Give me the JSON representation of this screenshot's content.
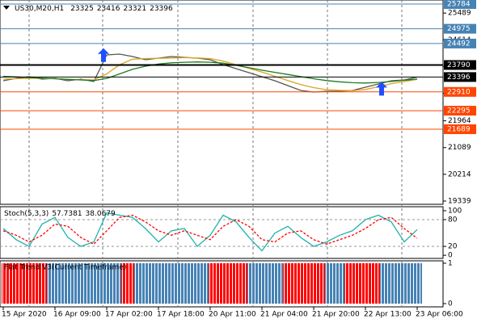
{
  "chart_data": [
    {
      "type": "line",
      "title": "US30,M20,H1",
      "ohlc": [
        23325,
        23416,
        23321,
        23396
      ],
      "x": [
        0,
        4,
        8,
        12,
        16,
        20,
        24,
        28,
        32,
        36,
        40,
        44,
        48,
        52,
        56,
        60,
        64,
        68,
        72,
        76,
        80,
        84,
        88,
        92,
        96,
        100,
        104,
        108,
        112,
        116,
        120,
        124,
        128
      ],
      "series": [
        {
          "name": "close",
          "color": "#555555",
          "values": [
            23275,
            23354,
            23407,
            23328,
            23354,
            23275,
            23328,
            23250,
            24120,
            24147,
            24067,
            23962,
            24015,
            24067,
            24041,
            24015,
            23962,
            23803,
            23671,
            23539,
            23407,
            23275,
            23117,
            22958,
            22905,
            22932,
            22932,
            22958,
            23064,
            23170,
            23275,
            23301,
            23396
          ]
        },
        {
          "name": "fast",
          "color": "#daa520",
          "values": [
            23330,
            23340,
            23360,
            23350,
            23340,
            23320,
            23310,
            23300,
            23500,
            23800,
            23980,
            24000,
            24010,
            24020,
            24030,
            24020,
            24000,
            23920,
            23800,
            23680,
            23560,
            23420,
            23280,
            23150,
            23050,
            22980,
            22960,
            22950,
            22990,
            23080,
            23180,
            23250,
            23320
          ]
        },
        {
          "name": "slow",
          "color": "#1e7b1e",
          "values": [
            23420,
            23400,
            23380,
            23360,
            23340,
            23320,
            23300,
            23280,
            23350,
            23500,
            23650,
            23750,
            23820,
            23860,
            23880,
            23890,
            23880,
            23850,
            23780,
            23700,
            23620,
            23550,
            23480,
            23410,
            23340,
            23280,
            23240,
            23210,
            23200,
            23220,
            23250,
            23290,
            23330
          ]
        }
      ],
      "xlim": [
        -1,
        136
      ],
      "ylim": [
        19233,
        25916
      ],
      "xticks": [
        {
          "value": 0,
          "label": "15 Apr 2020"
        },
        {
          "value": 16,
          "label": "16 Apr 09:00"
        },
        {
          "value": 32,
          "label": "17 Apr 02:00"
        },
        {
          "value": 48,
          "label": "17 Apr 18:00"
        },
        {
          "value": 64,
          "label": "20 Apr 11:00"
        },
        {
          "value": 80,
          "label": "21 Apr 04:00"
        },
        {
          "value": 96,
          "label": "21 Apr 20:00"
        },
        {
          "value": 112,
          "label": "22 Apr 13:00"
        },
        {
          "value": 128,
          "label": "23 Apr 06:00"
        }
      ],
      "yticks": [
        25489,
        24614,
        23739,
        22864,
        21964,
        21089,
        20214,
        19339
      ],
      "levels": [
        {
          "value": 25784,
          "color": "#4682b4"
        },
        {
          "value": 24975,
          "color": "#4682b4"
        },
        {
          "value": 24492,
          "color": "#4682b4"
        },
        {
          "value": 23790,
          "color": "#000000"
        },
        {
          "value": 23396,
          "color": "#000000"
        },
        {
          "value": 22910,
          "color": "#ff4500"
        },
        {
          "value": 22295,
          "color": "#ff4500"
        },
        {
          "value": 21689,
          "color": "#ff4500"
        }
      ],
      "signals": [
        {
          "x": 31,
          "value": 24100
        },
        {
          "x": 117,
          "value": 23000
        }
      ],
      "signal_color": "#1e50ff"
    },
    {
      "type": "line",
      "title": "Stoch(5,3,3)",
      "x": [
        0,
        4,
        8,
        12,
        16,
        20,
        24,
        28,
        32,
        36,
        40,
        44,
        48,
        52,
        56,
        60,
        64,
        68,
        72,
        76,
        80,
        84,
        88,
        92,
        96,
        100,
        104,
        108,
        112,
        116,
        120,
        124,
        128
      ],
      "series": [
        {
          "name": "main",
          "color": "#20b2aa",
          "values": [
            60,
            35,
            20,
            70,
            85,
            40,
            20,
            30,
            95,
            90,
            85,
            60,
            30,
            55,
            60,
            20,
            45,
            90,
            75,
            40,
            10,
            50,
            65,
            40,
            20,
            30,
            45,
            55,
            80,
            90,
            75,
            30,
            57.7381
          ]
        },
        {
          "name": "signal",
          "color": "#ff0000",
          "dash": true,
          "values": [
            55,
            45,
            30,
            45,
            70,
            65,
            40,
            25,
            55,
            85,
            90,
            75,
            55,
            45,
            55,
            45,
            35,
            65,
            80,
            65,
            35,
            30,
            50,
            55,
            35,
            25,
            35,
            45,
            60,
            80,
            85,
            60,
            38.0679
          ]
        }
      ],
      "xlim": [
        -1,
        136
      ],
      "ylim": [
        -7,
        109
      ],
      "yticks": [
        100,
        80,
        20,
        0
      ],
      "levels": [
        80,
        20
      ]
    },
    {
      "type": "bar",
      "title": "Flat Trend V3(Current Timeframe)",
      "segments": [
        {
          "from": 0,
          "to": 14,
          "value": 1,
          "color": "#ff0000"
        },
        {
          "from": 14,
          "to": 37,
          "value": 1,
          "color": "#4682b4"
        },
        {
          "from": 37,
          "to": 41,
          "value": 1,
          "color": "#ff0000"
        },
        {
          "from": 41,
          "to": 64,
          "value": 1,
          "color": "#4682b4"
        },
        {
          "from": 64,
          "to": 76,
          "value": 1,
          "color": "#ff0000"
        },
        {
          "from": 76,
          "to": 87,
          "value": 1,
          "color": "#4682b4"
        },
        {
          "from": 87,
          "to": 100,
          "value": 1,
          "color": "#ff0000"
        },
        {
          "from": 100,
          "to": 106,
          "value": 1,
          "color": "#4682b4"
        },
        {
          "from": 106,
          "to": 117,
          "value": 1,
          "color": "#ff0000"
        },
        {
          "from": 117,
          "to": 130,
          "value": 1,
          "color": "#4682b4"
        }
      ],
      "xlim": [
        -1,
        136
      ],
      "ylim": [
        -0.08,
        1.06
      ],
      "yticks": [
        1,
        0
      ]
    }
  ]
}
